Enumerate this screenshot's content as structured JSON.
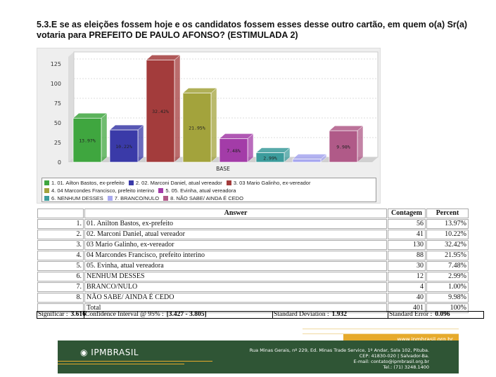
{
  "title": "5.3.E se as eleições fossem hoje e os candidatos fossem esses desse outro cartão, em quem o(a) Sr(a) votaria para PREFEITO DE PAULO AFONSO? (ESTIMULADA 2)",
  "chart_data": {
    "type": "bar",
    "xlabel": "BASE",
    "ylim": [
      0,
      125
    ],
    "yticks": [
      0,
      25,
      50,
      75,
      100,
      125
    ],
    "categories": [
      "1. 01. Ailton Bastos, ex-prefeito",
      "2. 02. Marconi Daniel, atual vereador",
      "3. 03 Mario Galinho, ex-vereador",
      "4. 04 Marcondes Francisco, prefeito interino",
      "5. 05. Evinha, atual vereadora",
      "6. NENHUM DESSES",
      "7. BRANCO/NULO",
      "8. NÃO SABE/ AINDA É CEDO"
    ],
    "values": [
      56,
      41,
      130,
      88,
      30,
      12,
      4,
      40
    ],
    "labels": [
      "13.97%",
      "10.22%",
      "32.42%",
      "21.95%",
      "7.48%",
      "2.99%",
      "",
      "9.98%"
    ],
    "colors": [
      "#3fa63f",
      "#3a3aa8",
      "#a33c3c",
      "#a3a33c",
      "#a33ca8",
      "#3c9c9c",
      "#a8a8f0",
      "#b05a88"
    ],
    "legend_position": "bottom"
  },
  "table": {
    "headers": [
      "Answer",
      "Contagem",
      "Percent"
    ],
    "rows": [
      {
        "n": "1.",
        "answer": "01. Anilton Bastos, ex-prefeito",
        "count": "56",
        "pct": "13.97%"
      },
      {
        "n": "2.",
        "answer": "02. Marconi Daniel, atual vereador",
        "count": "41",
        "pct": "10.22%"
      },
      {
        "n": "3.",
        "answer": "03 Mario Galinho, ex-vereador",
        "count": "130",
        "pct": "32.42%"
      },
      {
        "n": "4.",
        "answer": "04 Marcondes Francisco, prefeito interino",
        "count": "88",
        "pct": "21.95%"
      },
      {
        "n": "5.",
        "answer": "05. Evinha, atual vereadora",
        "count": "30",
        "pct": "7.48%"
      },
      {
        "n": "6.",
        "answer": "NENHUM DESSES",
        "count": "12",
        "pct": "2.99%"
      },
      {
        "n": "7.",
        "answer": "BRANCO/NULO",
        "count": "4",
        "pct": "1.00%"
      },
      {
        "n": "8.",
        "answer": "NÃO SABE/ AINDA É CEDO",
        "count": "40",
        "pct": "9.98%"
      }
    ],
    "total": {
      "label": "Total",
      "count": "401",
      "pct": "100%"
    }
  },
  "stats": {
    "sig_label": "Significar :",
    "sig": "3.616",
    "ci_label": "Confidence Interval @ 95% :",
    "ci": "[3.427 - 3.805]",
    "sd_label": "Standard Deviation :",
    "sd": "1.932",
    "se_label": "Standard Error :",
    "se": "0.096"
  },
  "footer": {
    "url": "www.ipmbrasil.org.br",
    "logo": "IPMBRASIL",
    "address": "Rua Minas Gerais, nº 229, Ed. Minas Trade Service, 1º Andar, Sala 102, Pituba.",
    "cep": "CEP: 41830-020 | Salvador-Ba.",
    "email": "E-mail: contato@ipmbrasil.org.br",
    "tel": "Tel.: (71) 3248.1400"
  }
}
